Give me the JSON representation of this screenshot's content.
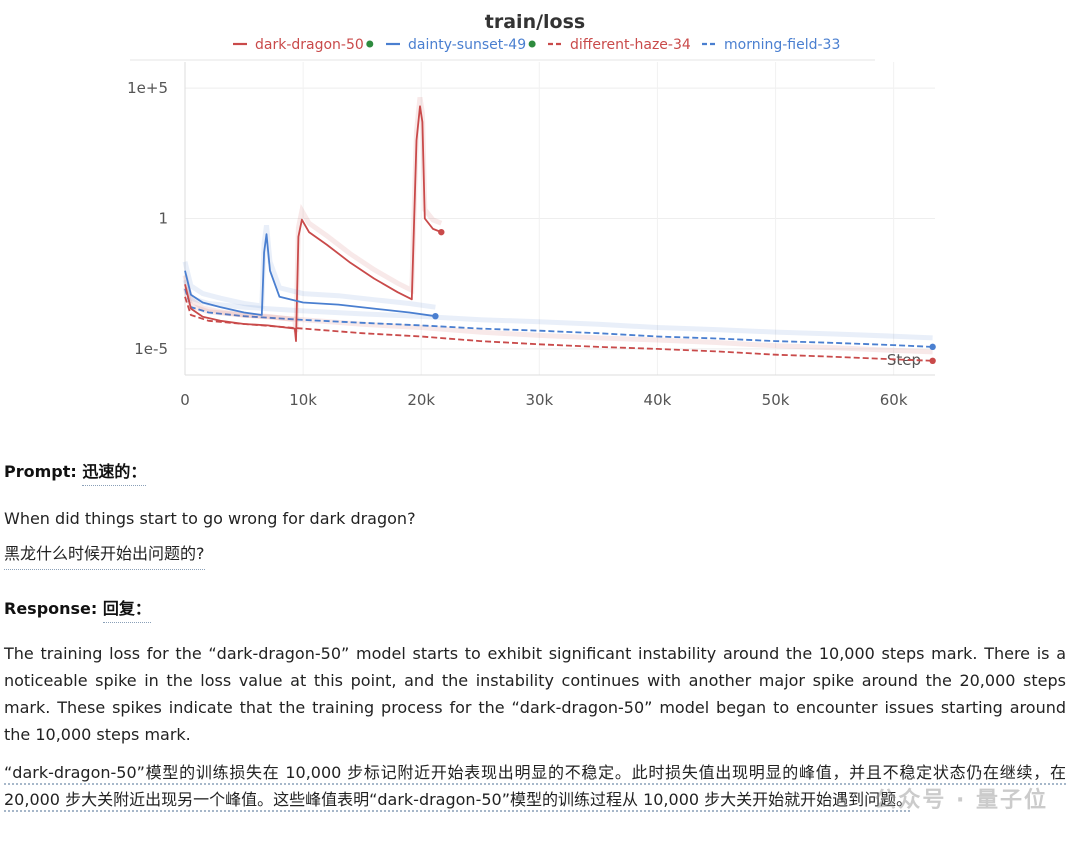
{
  "chart_data": {
    "type": "line",
    "title": "train/loss",
    "y_scale": "log",
    "y_ticks": [
      "1e+5",
      "1",
      "1e-5"
    ],
    "x_ticks": [
      "0",
      "10k",
      "20k",
      "30k",
      "40k",
      "50k",
      "60k"
    ],
    "xlim": [
      0,
      63500
    ],
    "ylim": [
      1e-06,
      1000000.0
    ],
    "x_axis_label": "Step",
    "legend_position": "top",
    "series": [
      {
        "name": "dark-dragon-50",
        "color": "#c94a4a",
        "style": "solid",
        "status": "running",
        "points": [
          [
            0,
            0.003
          ],
          [
            500,
            0.00035
          ],
          [
            1500,
            0.00017
          ],
          [
            3000,
            0.00012
          ],
          [
            5000,
            9e-05
          ],
          [
            7000,
            8e-05
          ],
          [
            9300,
            6e-05
          ],
          [
            9400,
            2e-05
          ],
          [
            9600,
            0.2
          ],
          [
            9900,
            0.9
          ],
          [
            10500,
            0.3
          ],
          [
            12000,
            0.1
          ],
          [
            14000,
            0.02
          ],
          [
            16000,
            0.005
          ],
          [
            18000,
            0.0015
          ],
          [
            19200,
            0.0008
          ],
          [
            19600,
            1000
          ],
          [
            19900,
            20000
          ],
          [
            20100,
            5000
          ],
          [
            20300,
            1.0
          ],
          [
            21000,
            0.4
          ],
          [
            21700,
            0.3
          ]
        ]
      },
      {
        "name": "dainty-sunset-49",
        "color": "#4a7fd0",
        "style": "solid",
        "status": "running",
        "points": [
          [
            0,
            0.01
          ],
          [
            500,
            0.0012
          ],
          [
            1500,
            0.0006
          ],
          [
            3000,
            0.0004
          ],
          [
            5000,
            0.00025
          ],
          [
            6500,
            0.0002
          ],
          [
            6700,
            0.05
          ],
          [
            6900,
            0.25
          ],
          [
            7200,
            0.01
          ],
          [
            8000,
            0.001
          ],
          [
            10000,
            0.0006
          ],
          [
            13000,
            0.0005
          ],
          [
            16000,
            0.00035
          ],
          [
            19000,
            0.00025
          ],
          [
            21200,
            0.00018
          ]
        ]
      },
      {
        "name": "different-haze-34",
        "color": "#c94a4a",
        "style": "dashed",
        "status": "finished",
        "points": [
          [
            0,
            0.001
          ],
          [
            500,
            0.0002
          ],
          [
            2000,
            0.00012
          ],
          [
            5000,
            9e-05
          ],
          [
            10000,
            6e-05
          ],
          [
            15000,
            4e-05
          ],
          [
            20000,
            3e-05
          ],
          [
            25000,
            2e-05
          ],
          [
            30000,
            1.5e-05
          ],
          [
            35000,
            1.2e-05
          ],
          [
            40000,
            1e-05
          ],
          [
            45000,
            8e-06
          ],
          [
            50000,
            6e-06
          ],
          [
            55000,
            5e-06
          ],
          [
            60000,
            4e-06
          ],
          [
            63300,
            3.5e-06
          ]
        ]
      },
      {
        "name": "morning-field-33",
        "color": "#4a7fd0",
        "style": "dashed",
        "status": "finished",
        "points": [
          [
            0,
            0.002
          ],
          [
            500,
            0.0004
          ],
          [
            2000,
            0.00025
          ],
          [
            5000,
            0.00018
          ],
          [
            10000,
            0.00013
          ],
          [
            15000,
            0.0001
          ],
          [
            20000,
            8e-05
          ],
          [
            25000,
            6e-05
          ],
          [
            30000,
            5e-05
          ],
          [
            35000,
            4e-05
          ],
          [
            40000,
            3e-05
          ],
          [
            45000,
            2.5e-05
          ],
          [
            50000,
            2e-05
          ],
          [
            55000,
            1.7e-05
          ],
          [
            60000,
            1.4e-05
          ],
          [
            63300,
            1.2e-05
          ]
        ]
      }
    ]
  },
  "article": {
    "prompt_label": "Prompt:",
    "prompt_label_zh": "迅速的：",
    "question_en": "When did things start to go wrong for dark dragon?",
    "question_zh": "黑龙什么时候开始出问题的?",
    "response_label": "Response:",
    "response_label_zh": "回复：",
    "answer_en": "The training loss for the “dark-dragon-50” model starts to exhibit significant instability around the 10,000 steps mark. There is a noticeable spike in the loss value at this point, and the instability continues with another major spike around the 20,000 steps mark. These spikes indicate that the training process for the “dark-dragon-50” model began to encounter issues starting around the 10,000 steps mark.",
    "answer_zh": "“dark-dragon-50”模型的训练损失在 10,000 步标记附近开始表现出明显的不稳定。此时损失值出现明显的峰值，并且不稳定状态仍在继续，在 20,000 步大关附近出现另一个峰值。这些峰值表明“dark-dragon-50”模型的训练过程从 10,000 步大关开始就开始遇到问题。",
    "watermark": "公众号 · 量子位"
  }
}
